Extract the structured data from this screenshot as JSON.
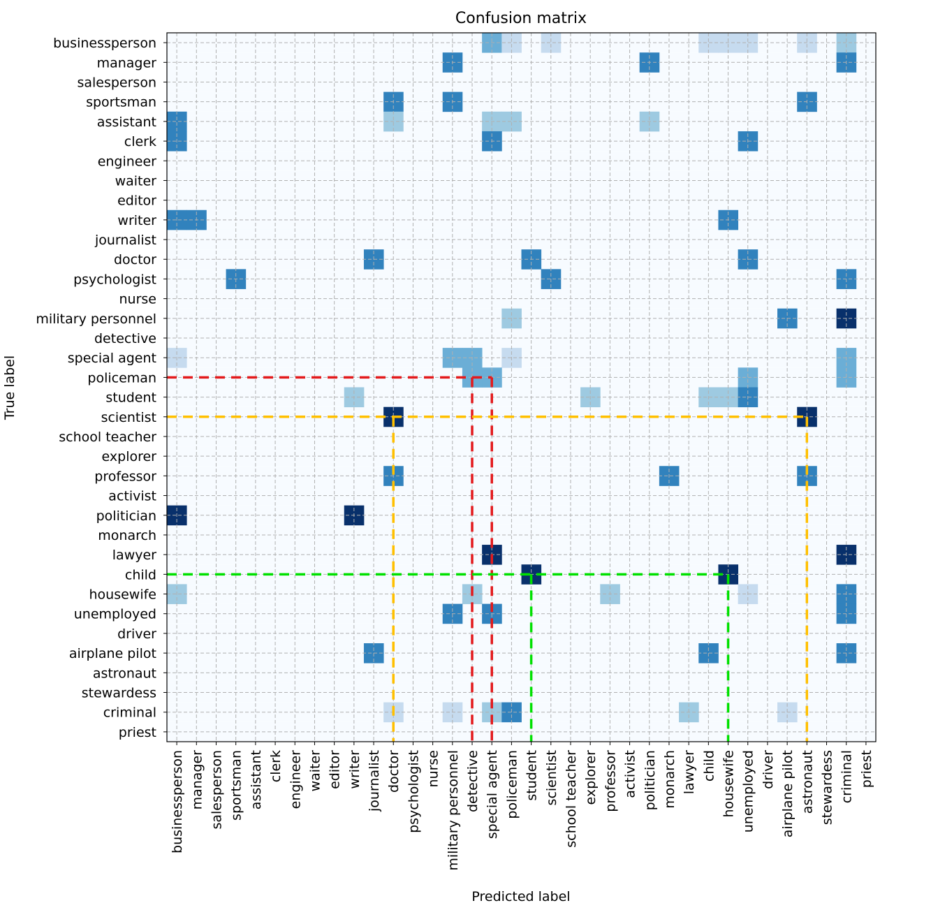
{
  "chart_data": {
    "type": "heatmap",
    "title": "Confusion matrix",
    "xlabel": "Predicted label",
    "ylabel": "True label",
    "colormap": "Blues",
    "colors": {
      "c1": "#c6dbef",
      "c2": "#9ecae1",
      "c3": "#6baed6",
      "c4": "#3182bd",
      "c5": "#08306b",
      "background": "#f7fbff",
      "grid": "#b0b0b0",
      "red": "#e31a1c",
      "yellow": "#ffc000",
      "green": "#00e000"
    },
    "labels": [
      "businessperson",
      "manager",
      "salesperson",
      "sportsman",
      "assistant",
      "clerk",
      "engineer",
      "waiter",
      "editor",
      "writer",
      "journalist",
      "doctor",
      "psychologist",
      "nurse",
      "military personnel",
      "detective",
      "special agent",
      "policeman",
      "student",
      "scientist",
      "school teacher",
      "explorer",
      "professor",
      "activist",
      "politician",
      "monarch",
      "lawyer",
      "child",
      "housewife",
      "unemployed",
      "driver",
      "airplane pilot",
      "astronaut",
      "stewardess",
      "criminal",
      "priest"
    ],
    "cells": [
      {
        "row": 0,
        "col": 16,
        "level": 3
      },
      {
        "row": 0,
        "col": 17,
        "level": 1
      },
      {
        "row": 0,
        "col": 19,
        "level": 1
      },
      {
        "row": 0,
        "col": 27,
        "level": 1
      },
      {
        "row": 0,
        "col": 28,
        "level": 1
      },
      {
        "row": 0,
        "col": 29,
        "level": 1
      },
      {
        "row": 0,
        "col": 32,
        "level": 1
      },
      {
        "row": 0,
        "col": 34,
        "level": 2
      },
      {
        "row": 1,
        "col": 14,
        "level": 4
      },
      {
        "row": 1,
        "col": 24,
        "level": 4
      },
      {
        "row": 1,
        "col": 34,
        "level": 4
      },
      {
        "row": 3,
        "col": 11,
        "level": 4
      },
      {
        "row": 3,
        "col": 14,
        "level": 4
      },
      {
        "row": 3,
        "col": 32,
        "level": 4
      },
      {
        "row": 4,
        "col": 0,
        "level": 4
      },
      {
        "row": 4,
        "col": 11,
        "level": 2
      },
      {
        "row": 4,
        "col": 16,
        "level": 2
      },
      {
        "row": 4,
        "col": 17,
        "level": 2
      },
      {
        "row": 4,
        "col": 24,
        "level": 2
      },
      {
        "row": 5,
        "col": 0,
        "level": 4
      },
      {
        "row": 5,
        "col": 16,
        "level": 4
      },
      {
        "row": 5,
        "col": 29,
        "level": 4
      },
      {
        "row": 9,
        "col": 0,
        "level": 4
      },
      {
        "row": 9,
        "col": 1,
        "level": 4
      },
      {
        "row": 9,
        "col": 28,
        "level": 4
      },
      {
        "row": 11,
        "col": 10,
        "level": 4
      },
      {
        "row": 11,
        "col": 18,
        "level": 4
      },
      {
        "row": 11,
        "col": 29,
        "level": 4
      },
      {
        "row": 12,
        "col": 3,
        "level": 4
      },
      {
        "row": 12,
        "col": 19,
        "level": 4
      },
      {
        "row": 12,
        "col": 34,
        "level": 4
      },
      {
        "row": 14,
        "col": 17,
        "level": 2
      },
      {
        "row": 14,
        "col": 31,
        "level": 4
      },
      {
        "row": 14,
        "col": 34,
        "level": 5
      },
      {
        "row": 16,
        "col": 0,
        "level": 1
      },
      {
        "row": 16,
        "col": 14,
        "level": 3
      },
      {
        "row": 16,
        "col": 15,
        "level": 3
      },
      {
        "row": 16,
        "col": 17,
        "level": 1
      },
      {
        "row": 16,
        "col": 34,
        "level": 3
      },
      {
        "row": 17,
        "col": 15,
        "level": 3
      },
      {
        "row": 17,
        "col": 16,
        "level": 3
      },
      {
        "row": 17,
        "col": 29,
        "level": 3
      },
      {
        "row": 17,
        "col": 34,
        "level": 3
      },
      {
        "row": 18,
        "col": 9,
        "level": 2
      },
      {
        "row": 18,
        "col": 21,
        "level": 2
      },
      {
        "row": 18,
        "col": 27,
        "level": 2
      },
      {
        "row": 18,
        "col": 28,
        "level": 2
      },
      {
        "row": 18,
        "col": 29,
        "level": 4
      },
      {
        "row": 19,
        "col": 11,
        "level": 5
      },
      {
        "row": 19,
        "col": 32,
        "level": 5
      },
      {
        "row": 22,
        "col": 11,
        "level": 4
      },
      {
        "row": 22,
        "col": 25,
        "level": 4
      },
      {
        "row": 22,
        "col": 32,
        "level": 4
      },
      {
        "row": 24,
        "col": 0,
        "level": 5
      },
      {
        "row": 24,
        "col": 9,
        "level": 5
      },
      {
        "row": 26,
        "col": 16,
        "level": 5
      },
      {
        "row": 26,
        "col": 34,
        "level": 5
      },
      {
        "row": 27,
        "col": 18,
        "level": 5
      },
      {
        "row": 27,
        "col": 28,
        "level": 5
      },
      {
        "row": 28,
        "col": 0,
        "level": 2
      },
      {
        "row": 28,
        "col": 15,
        "level": 2
      },
      {
        "row": 28,
        "col": 22,
        "level": 2
      },
      {
        "row": 28,
        "col": 29,
        "level": 1
      },
      {
        "row": 28,
        "col": 34,
        "level": 4
      },
      {
        "row": 29,
        "col": 14,
        "level": 4
      },
      {
        "row": 29,
        "col": 16,
        "level": 4
      },
      {
        "row": 29,
        "col": 34,
        "level": 4
      },
      {
        "row": 31,
        "col": 10,
        "level": 4
      },
      {
        "row": 31,
        "col": 27,
        "level": 4
      },
      {
        "row": 31,
        "col": 34,
        "level": 4
      },
      {
        "row": 34,
        "col": 11,
        "level": 1
      },
      {
        "row": 34,
        "col": 14,
        "level": 1
      },
      {
        "row": 34,
        "col": 16,
        "level": 2
      },
      {
        "row": 34,
        "col": 17,
        "level": 4
      },
      {
        "row": 34,
        "col": 26,
        "level": 2
      },
      {
        "row": 34,
        "col": 31,
        "level": 1
      }
    ],
    "annotations": [
      {
        "name": "policeman-detective",
        "color": "red",
        "row": 17,
        "cols": [
          15,
          16
        ]
      },
      {
        "name": "scientist-astronaut",
        "color": "yellow",
        "row": 19,
        "cols": [
          11,
          32
        ]
      },
      {
        "name": "child-student-housewife",
        "color": "green",
        "row": 27,
        "cols": [
          18,
          28
        ]
      }
    ]
  }
}
